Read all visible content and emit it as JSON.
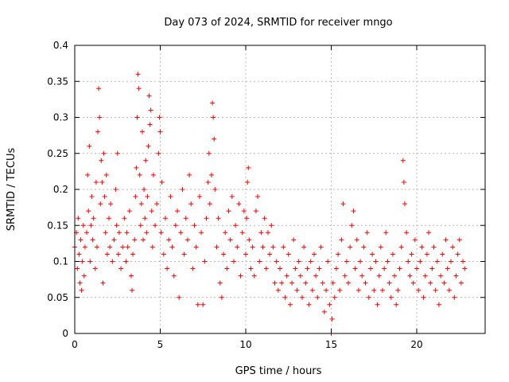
{
  "chart_data": {
    "type": "scatter",
    "title": "Day 073 of 2024, SRMTID for receiver mngo",
    "xlabel": "GPS time / hours",
    "ylabel": "SRMTID / TECUs",
    "xlim": [
      0,
      24
    ],
    "ylim": [
      0,
      0.4
    ],
    "xticks": [
      0,
      5,
      10,
      15,
      20
    ],
    "xtick_labels": [
      "0",
      "5",
      "10",
      "15",
      "20"
    ],
    "yticks": [
      0,
      0.05,
      0.1,
      0.15,
      0.2,
      0.25,
      0.3,
      0.35,
      0.4
    ],
    "ytick_labels": [
      "0",
      "0.05",
      "0.1",
      "0.15",
      "0.2",
      "0.25",
      "0.3",
      "0.35",
      "0.4"
    ],
    "grid": true,
    "marker": "plus",
    "color": "#ff0000",
    "series": [
      {
        "name": "SRMTID",
        "points": [
          [
            0.0,
            0.12
          ],
          [
            0.1,
            0.14
          ],
          [
            0.15,
            0.09
          ],
          [
            0.2,
            0.16
          ],
          [
            0.25,
            0.11
          ],
          [
            0.3,
            0.07
          ],
          [
            0.35,
            0.13
          ],
          [
            0.4,
            0.06
          ],
          [
            0.45,
            0.1
          ],
          [
            0.5,
            0.15
          ],
          [
            0.55,
            0.08
          ],
          [
            0.6,
            0.12
          ],
          [
            0.7,
            0.14
          ],
          [
            0.75,
            0.22
          ],
          [
            0.8,
            0.17
          ],
          [
            0.85,
            0.26
          ],
          [
            0.9,
            0.1
          ],
          [
            0.95,
            0.15
          ],
          [
            1.0,
            0.19
          ],
          [
            1.05,
            0.13
          ],
          [
            1.1,
            0.16
          ],
          [
            1.2,
            0.09
          ],
          [
            1.25,
            0.21
          ],
          [
            1.3,
            0.12
          ],
          [
            1.35,
            0.28
          ],
          [
            1.4,
            0.34
          ],
          [
            1.45,
            0.3
          ],
          [
            1.5,
            0.18
          ],
          [
            1.55,
            0.24
          ],
          [
            1.6,
            0.21
          ],
          [
            1.65,
            0.07
          ],
          [
            1.7,
            0.25
          ],
          [
            1.75,
            0.19
          ],
          [
            1.8,
            0.14
          ],
          [
            1.85,
            0.22
          ],
          [
            1.9,
            0.11
          ],
          [
            2.0,
            0.16
          ],
          [
            2.05,
            0.12
          ],
          [
            2.1,
            0.18
          ],
          [
            2.2,
            0.1
          ],
          [
            2.3,
            0.13
          ],
          [
            2.4,
            0.2
          ],
          [
            2.45,
            0.15
          ],
          [
            2.5,
            0.25
          ],
          [
            2.55,
            0.11
          ],
          [
            2.6,
            0.14
          ],
          [
            2.7,
            0.09
          ],
          [
            2.8,
            0.12
          ],
          [
            2.9,
            0.16
          ],
          [
            3.0,
            0.1
          ],
          [
            3.05,
            0.14
          ],
          [
            3.1,
            0.12
          ],
          [
            3.2,
            0.17
          ],
          [
            3.3,
            0.08
          ],
          [
            3.35,
            0.06
          ],
          [
            3.4,
            0.11
          ],
          [
            3.5,
            0.13
          ],
          [
            3.55,
            0.19
          ],
          [
            3.6,
            0.23
          ],
          [
            3.65,
            0.3
          ],
          [
            3.7,
            0.36
          ],
          [
            3.75,
            0.34
          ],
          [
            3.8,
            0.22
          ],
          [
            3.85,
            0.15
          ],
          [
            3.9,
            0.18
          ],
          [
            3.95,
            0.28
          ],
          [
            4.0,
            0.13
          ],
          [
            4.05,
            0.2
          ],
          [
            4.1,
            0.16
          ],
          [
            4.15,
            0.24
          ],
          [
            4.2,
            0.14
          ],
          [
            4.25,
            0.19
          ],
          [
            4.3,
            0.26
          ],
          [
            4.35,
            0.33
          ],
          [
            4.4,
            0.29
          ],
          [
            4.45,
            0.31
          ],
          [
            4.5,
            0.17
          ],
          [
            4.55,
            0.12
          ],
          [
            4.6,
            0.22
          ],
          [
            4.7,
            0.15
          ],
          [
            4.8,
            0.18
          ],
          [
            4.9,
            0.25
          ],
          [
            4.95,
            0.3
          ],
          [
            5.0,
            0.28
          ],
          [
            5.05,
            0.14
          ],
          [
            5.1,
            0.21
          ],
          [
            5.2,
            0.11
          ],
          [
            5.3,
            0.16
          ],
          [
            5.4,
            0.09
          ],
          [
            5.5,
            0.13
          ],
          [
            5.6,
            0.19
          ],
          [
            5.7,
            0.12
          ],
          [
            5.8,
            0.08
          ],
          [
            5.9,
            0.15
          ],
          [
            6.0,
            0.17
          ],
          [
            6.1,
            0.05
          ],
          [
            6.2,
            0.14
          ],
          [
            6.3,
            0.2
          ],
          [
            6.4,
            0.11
          ],
          [
            6.5,
            0.16
          ],
          [
            6.6,
            0.13
          ],
          [
            6.7,
            0.22
          ],
          [
            6.8,
            0.18
          ],
          [
            6.9,
            0.09
          ],
          [
            7.0,
            0.15
          ],
          [
            7.1,
            0.12
          ],
          [
            7.2,
            0.04
          ],
          [
            7.3,
            0.19
          ],
          [
            7.4,
            0.14
          ],
          [
            7.5,
            0.04
          ],
          [
            7.6,
            0.1
          ],
          [
            7.7,
            0.16
          ],
          [
            7.8,
            0.21
          ],
          [
            7.85,
            0.25
          ],
          [
            7.9,
            0.18
          ],
          [
            8.0,
            0.22
          ],
          [
            8.05,
            0.32
          ],
          [
            8.1,
            0.3
          ],
          [
            8.15,
            0.27
          ],
          [
            8.2,
            0.2
          ],
          [
            8.3,
            0.12
          ],
          [
            8.4,
            0.16
          ],
          [
            8.5,
            0.07
          ],
          [
            8.6,
            0.05
          ],
          [
            8.7,
            0.11
          ],
          [
            8.8,
            0.14
          ],
          [
            8.9,
            0.09
          ],
          [
            9.0,
            0.17
          ],
          [
            9.1,
            0.13
          ],
          [
            9.2,
            0.19
          ],
          [
            9.3,
            0.1
          ],
          [
            9.4,
            0.15
          ],
          [
            9.5,
            0.12
          ],
          [
            9.6,
            0.18
          ],
          [
            9.7,
            0.08
          ],
          [
            9.8,
            0.14
          ],
          [
            9.9,
            0.17
          ],
          [
            10.0,
            0.11
          ],
          [
            10.05,
            0.16
          ],
          [
            10.1,
            0.21
          ],
          [
            10.15,
            0.23
          ],
          [
            10.2,
            0.13
          ],
          [
            10.3,
            0.09
          ],
          [
            10.4,
            0.12
          ],
          [
            10.5,
            0.08
          ],
          [
            10.6,
            0.17
          ],
          [
            10.7,
            0.19
          ],
          [
            10.8,
            0.1
          ],
          [
            10.9,
            0.14
          ],
          [
            11.0,
            0.12
          ],
          [
            11.1,
            0.16
          ],
          [
            11.2,
            0.09
          ],
          [
            11.3,
            0.14
          ],
          [
            11.4,
            0.11
          ],
          [
            11.5,
            0.15
          ],
          [
            11.6,
            0.12
          ],
          [
            11.7,
            0.07
          ],
          [
            11.8,
            0.1
          ],
          [
            11.9,
            0.06
          ],
          [
            12.0,
            0.09
          ],
          [
            12.1,
            0.07
          ],
          [
            12.2,
            0.12
          ],
          [
            12.3,
            0.05
          ],
          [
            12.4,
            0.08
          ],
          [
            12.5,
            0.11
          ],
          [
            12.6,
            0.04
          ],
          [
            12.7,
            0.07
          ],
          [
            12.8,
            0.13
          ],
          [
            12.9,
            0.09
          ],
          [
            13.0,
            0.06
          ],
          [
            13.1,
            0.1
          ],
          [
            13.2,
            0.08
          ],
          [
            13.3,
            0.05
          ],
          [
            13.4,
            0.12
          ],
          [
            13.5,
            0.07
          ],
          [
            13.6,
            0.09
          ],
          [
            13.7,
            0.04
          ],
          [
            13.8,
            0.1
          ],
          [
            13.9,
            0.06
          ],
          [
            14.0,
            0.11
          ],
          [
            14.1,
            0.08
          ],
          [
            14.2,
            0.05
          ],
          [
            14.3,
            0.09
          ],
          [
            14.4,
            0.12
          ],
          [
            14.5,
            0.07
          ],
          [
            14.6,
            0.03
          ],
          [
            14.7,
            0.06
          ],
          [
            14.8,
            0.1
          ],
          [
            14.9,
            0.04
          ],
          [
            15.0,
            0.0
          ],
          [
            15.05,
            0.02
          ],
          [
            15.1,
            0.07
          ],
          [
            15.2,
            0.05
          ],
          [
            15.3,
            0.09
          ],
          [
            15.4,
            0.11
          ],
          [
            15.5,
            0.06
          ],
          [
            15.6,
            0.13
          ],
          [
            15.7,
            0.18
          ],
          [
            15.8,
            0.08
          ],
          [
            15.9,
            0.1
          ],
          [
            16.0,
            0.07
          ],
          [
            16.1,
            0.12
          ],
          [
            16.2,
            0.15
          ],
          [
            16.3,
            0.17
          ],
          [
            16.4,
            0.09
          ],
          [
            16.5,
            0.13
          ],
          [
            16.6,
            0.06
          ],
          [
            16.7,
            0.1
          ],
          [
            16.8,
            0.08
          ],
          [
            16.9,
            0.12
          ],
          [
            17.0,
            0.07
          ],
          [
            17.1,
            0.14
          ],
          [
            17.2,
            0.05
          ],
          [
            17.3,
            0.09
          ],
          [
            17.4,
            0.11
          ],
          [
            17.5,
            0.06
          ],
          [
            17.6,
            0.1
          ],
          [
            17.7,
            0.04
          ],
          [
            17.8,
            0.08
          ],
          [
            17.9,
            0.12
          ],
          [
            18.0,
            0.06
          ],
          [
            18.1,
            0.09
          ],
          [
            18.2,
            0.14
          ],
          [
            18.3,
            0.1
          ],
          [
            18.4,
            0.07
          ],
          [
            18.5,
            0.05
          ],
          [
            18.6,
            0.11
          ],
          [
            18.7,
            0.08
          ],
          [
            18.8,
            0.04
          ],
          [
            18.9,
            0.06
          ],
          [
            19.0,
            0.09
          ],
          [
            19.1,
            0.12
          ],
          [
            19.2,
            0.24
          ],
          [
            19.25,
            0.21
          ],
          [
            19.3,
            0.18
          ],
          [
            19.4,
            0.14
          ],
          [
            19.5,
            0.1
          ],
          [
            19.6,
            0.08
          ],
          [
            19.7,
            0.11
          ],
          [
            19.8,
            0.07
          ],
          [
            19.9,
            0.13
          ],
          [
            20.0,
            0.09
          ],
          [
            20.1,
            0.06
          ],
          [
            20.2,
            0.1
          ],
          [
            20.3,
            0.12
          ],
          [
            20.4,
            0.05
          ],
          [
            20.5,
            0.08
          ],
          [
            20.6,
            0.11
          ],
          [
            20.7,
            0.14
          ],
          [
            20.8,
            0.07
          ],
          [
            20.9,
            0.09
          ],
          [
            21.0,
            0.12
          ],
          [
            21.1,
            0.06
          ],
          [
            21.2,
            0.1
          ],
          [
            21.3,
            0.04
          ],
          [
            21.4,
            0.08
          ],
          [
            21.5,
            0.11
          ],
          [
            21.6,
            0.07
          ],
          [
            21.7,
            0.13
          ],
          [
            21.8,
            0.09
          ],
          [
            21.9,
            0.06
          ],
          [
            22.0,
            0.1
          ],
          [
            22.1,
            0.12
          ],
          [
            22.2,
            0.05
          ],
          [
            22.3,
            0.08
          ],
          [
            22.4,
            0.11
          ],
          [
            22.5,
            0.13
          ],
          [
            22.6,
            0.07
          ],
          [
            22.7,
            0.1
          ],
          [
            22.8,
            0.09
          ]
        ]
      }
    ]
  }
}
